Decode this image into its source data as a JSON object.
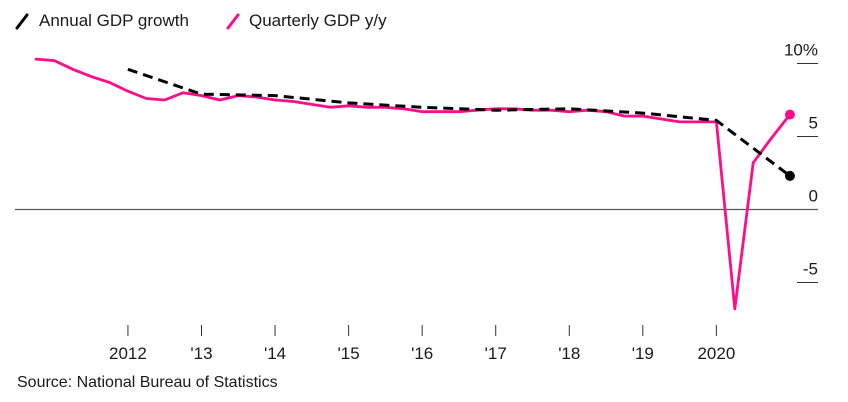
{
  "legend": [
    {
      "label": "Annual GDP growth",
      "color": "#000000",
      "style": "dashed"
    },
    {
      "label": "Quarterly GDP y/y",
      "color": "#ff0c8a",
      "style": "solid"
    }
  ],
  "source": "Source: National Bureau of Statistics",
  "chart_data": {
    "type": "line",
    "x_ticks": [
      {
        "x": 2012.0,
        "label": "2012"
      },
      {
        "x": 2013.0,
        "label": "'13"
      },
      {
        "x": 2014.0,
        "label": "'14"
      },
      {
        "x": 2015.0,
        "label": "'15"
      },
      {
        "x": 2016.0,
        "label": "'16"
      },
      {
        "x": 2017.0,
        "label": "'17"
      },
      {
        "x": 2018.0,
        "label": "'18"
      },
      {
        "x": 2019.0,
        "label": "'19"
      },
      {
        "x": 2020.0,
        "label": "2020"
      }
    ],
    "y_ticks": [
      {
        "y": 10,
        "label": "10%"
      },
      {
        "y": 5,
        "label": "5"
      },
      {
        "y": 0,
        "label": "0"
      },
      {
        "y": -5,
        "label": "-5"
      }
    ],
    "xlim": [
      2010.75,
      2021.3
    ],
    "ylim": [
      -9,
      11
    ],
    "series": [
      {
        "name": "Annual GDP growth",
        "color": "#000000",
        "style": "dashed",
        "end_marker": true,
        "points": [
          [
            2012.0,
            9.6
          ],
          [
            2013.0,
            7.9
          ],
          [
            2014.0,
            7.8
          ],
          [
            2015.0,
            7.3
          ],
          [
            2016.0,
            7.0
          ],
          [
            2017.0,
            6.8
          ],
          [
            2018.0,
            6.9
          ],
          [
            2019.0,
            6.6
          ],
          [
            2020.0,
            6.1
          ],
          [
            2021.0,
            2.3
          ]
        ]
      },
      {
        "name": "Quarterly GDP y/y",
        "color": "#ff0c8a",
        "style": "solid",
        "end_marker": true,
        "points": [
          [
            2010.75,
            10.3
          ],
          [
            2011.0,
            10.2
          ],
          [
            2011.25,
            9.6
          ],
          [
            2011.5,
            9.1
          ],
          [
            2011.75,
            8.7
          ],
          [
            2012.0,
            8.1
          ],
          [
            2012.25,
            7.6
          ],
          [
            2012.5,
            7.5
          ],
          [
            2012.75,
            8.0
          ],
          [
            2013.0,
            7.8
          ],
          [
            2013.25,
            7.5
          ],
          [
            2013.5,
            7.8
          ],
          [
            2013.75,
            7.7
          ],
          [
            2014.0,
            7.5
          ],
          [
            2014.25,
            7.4
          ],
          [
            2014.5,
            7.2
          ],
          [
            2014.75,
            7.0
          ],
          [
            2015.0,
            7.1
          ],
          [
            2015.25,
            7.0
          ],
          [
            2015.5,
            7.0
          ],
          [
            2015.75,
            6.9
          ],
          [
            2016.0,
            6.7
          ],
          [
            2016.25,
            6.7
          ],
          [
            2016.5,
            6.7
          ],
          [
            2016.75,
            6.8
          ],
          [
            2017.0,
            6.9
          ],
          [
            2017.25,
            6.9
          ],
          [
            2017.5,
            6.8
          ],
          [
            2017.75,
            6.8
          ],
          [
            2018.0,
            6.7
          ],
          [
            2018.25,
            6.8
          ],
          [
            2018.5,
            6.7
          ],
          [
            2018.75,
            6.4
          ],
          [
            2019.0,
            6.4
          ],
          [
            2019.25,
            6.2
          ],
          [
            2019.5,
            6.0
          ],
          [
            2019.75,
            6.0
          ],
          [
            2020.0,
            6.0
          ],
          [
            2020.25,
            -6.8
          ],
          [
            2020.5,
            3.2
          ],
          [
            2020.75,
            4.9
          ],
          [
            2021.0,
            6.5
          ]
        ]
      }
    ]
  }
}
